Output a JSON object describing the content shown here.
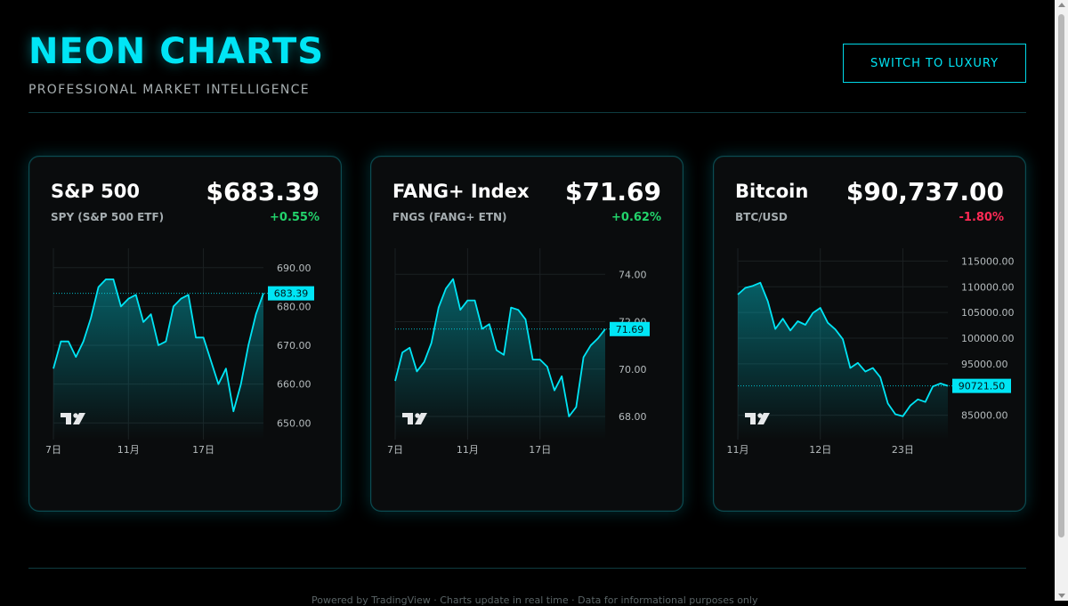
{
  "header": {
    "title": "NEON CHARTS",
    "subtitle": "PROFESSIONAL MARKET INTELLIGENCE",
    "switch_label": "SWITCH TO LUXURY"
  },
  "colors": {
    "accent": "#00e5f5",
    "positive": "#22d36b",
    "negative": "#ff2a55"
  },
  "watermark_icon": "tradingview-logo-icon",
  "cards": [
    {
      "name": "S&P 500",
      "symbol": "SPY (S&P 500 ETF)",
      "price": "$683.39",
      "change": "+0.55%",
      "direction": "up",
      "chart_data": {
        "type": "area",
        "last_label": "683.39",
        "last_value": 683.39,
        "ylim": [
          648,
          695
        ],
        "y_ticks": [
          "690.00",
          "680.00",
          "670.00",
          "660.00",
          "650.00"
        ],
        "y_tick_values": [
          690,
          680,
          670,
          660,
          650
        ],
        "x_ticks": [
          "7日",
          "11月",
          "17日"
        ],
        "x_tick_positions": [
          0,
          10,
          20
        ],
        "values": [
          664,
          671,
          671,
          667,
          671,
          677,
          685,
          687,
          687,
          680,
          682,
          683,
          676,
          678,
          670,
          671,
          680,
          682,
          683,
          672,
          672,
          666,
          660,
          664,
          653,
          660,
          670,
          678,
          683.39
        ]
      }
    },
    {
      "name": "FANG+ Index",
      "symbol": "FNGS (FANG+ ETN)",
      "price": "$71.69",
      "change": "+0.62%",
      "direction": "up",
      "chart_data": {
        "type": "area",
        "last_label": "71.69",
        "last_value": 71.69,
        "ylim": [
          67.4,
          75.1
        ],
        "y_ticks": [
          "74.00",
          "72.00",
          "70.00",
          "68.00"
        ],
        "y_tick_values": [
          74,
          72,
          70,
          68
        ],
        "x_ticks": [
          "7日",
          "11月",
          "17日"
        ],
        "x_tick_positions": [
          0,
          10,
          20
        ],
        "values": [
          69.5,
          70.7,
          70.9,
          69.9,
          70.3,
          71.1,
          72.6,
          73.4,
          73.8,
          72.5,
          72.9,
          72.9,
          71.7,
          71.9,
          70.8,
          70.6,
          72.6,
          72.5,
          72.1,
          70.4,
          70.4,
          70.1,
          69.1,
          69.7,
          68.0,
          68.4,
          70.5,
          71.0,
          71.3,
          71.69
        ]
      }
    },
    {
      "name": "Bitcoin",
      "symbol": "BTC/USD",
      "price": "$90,737.00",
      "change": "-1.80%",
      "direction": "down",
      "chart_data": {
        "type": "area",
        "last_label": "90721.50",
        "last_value": 90721.5,
        "ylim": [
          82000,
          117500
        ],
        "y_ticks": [
          "115000.00",
          "110000.00",
          "105000.00",
          "100000.00",
          "95000.00",
          "85000.00"
        ],
        "y_tick_values": [
          115000,
          110000,
          105000,
          100000,
          95000,
          85000
        ],
        "x_ticks": [
          "11月",
          "12日",
          "23日"
        ],
        "x_tick_positions": [
          0,
          11,
          22
        ],
        "values": [
          108500,
          109800,
          110200,
          110800,
          107200,
          101800,
          103800,
          101500,
          103300,
          102600,
          104900,
          105900,
          103000,
          101700,
          99800,
          94200,
          95200,
          93500,
          94200,
          92400,
          87300,
          85200,
          84800,
          86900,
          88100,
          87600,
          90600,
          91200,
          90721.5
        ]
      }
    }
  ],
  "footer": {
    "text": "Powered by TradingView · Charts update in real time · Data for informational purposes only"
  }
}
